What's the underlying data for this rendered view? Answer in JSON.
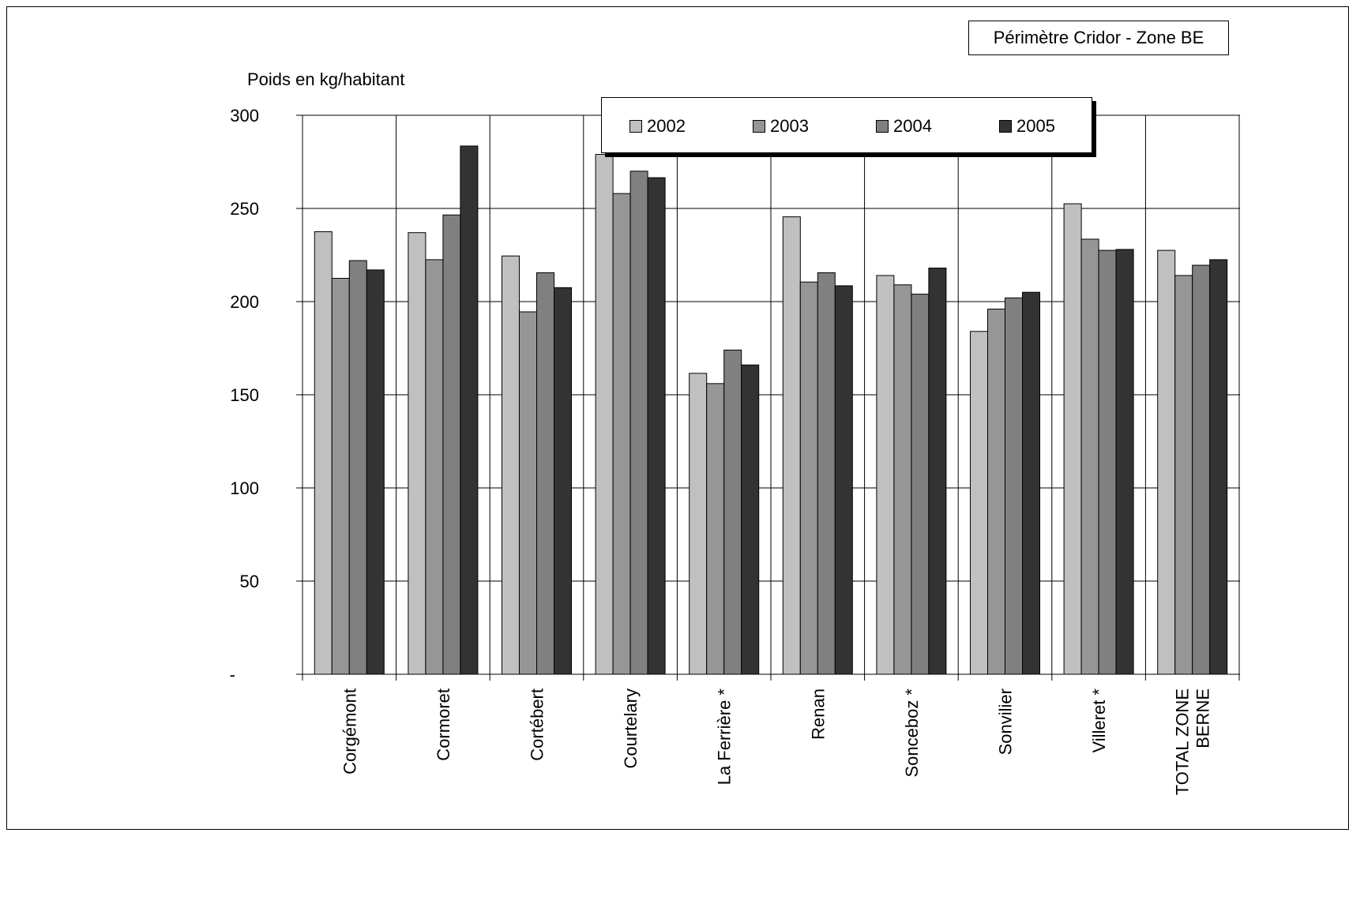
{
  "box_label": "Périmètre Cridor - Zone BE",
  "unit_label": "Poids en kg/habitant",
  "chart_data": {
    "type": "bar",
    "title": "Périmètre Cridor - Zone BE",
    "ylabel": "Poids en kg/habitant",
    "xlabel": "",
    "ylim": [
      0,
      300
    ],
    "yticks": [
      0,
      50,
      100,
      150,
      200,
      250,
      300
    ],
    "ytick_labels": [
      "-",
      "50",
      "100",
      "150",
      "200",
      "250",
      "300"
    ],
    "grid": true,
    "legend_position": "top-center",
    "categories": [
      "Corgémont",
      "Cormoret",
      "Cortébert",
      "Courtelary",
      "La Ferrière  *",
      "Renan",
      "Sonceboz *",
      "Sonvilier",
      "Villeret  *",
      "TOTAL ZONE BERNE"
    ],
    "series": [
      {
        "name": "2002",
        "color": "#c0c0c0",
        "values": [
          237.5,
          237,
          224.5,
          279,
          161.5,
          245.5,
          214,
          184,
          252.5,
          227.5
        ]
      },
      {
        "name": "2003",
        "color": "#969696",
        "values": [
          212.5,
          222.5,
          194.5,
          258,
          156,
          210.5,
          209,
          196,
          233.5,
          214
        ]
      },
      {
        "name": "2004",
        "color": "#808080",
        "values": [
          222,
          246.5,
          215.5,
          270,
          174,
          215.5,
          204,
          202,
          227.5,
          219.5
        ]
      },
      {
        "name": "2005",
        "color": "#333333",
        "values": [
          217,
          283.5,
          207.5,
          266.5,
          166,
          208.5,
          218,
          205,
          228,
          222.5
        ]
      }
    ]
  }
}
